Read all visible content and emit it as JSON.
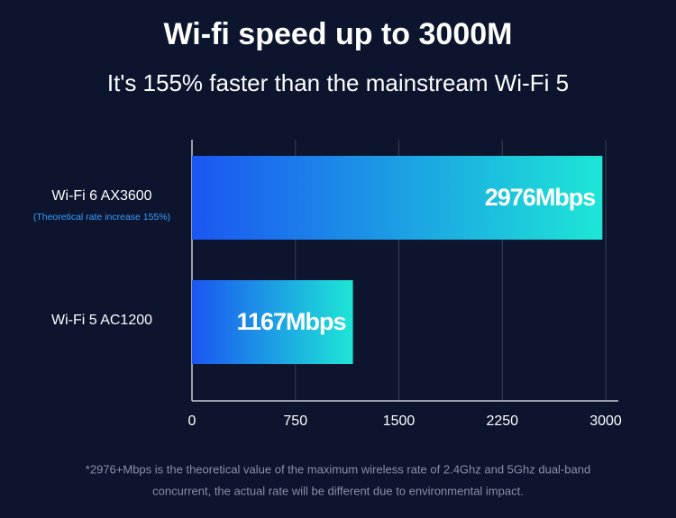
{
  "chart_data": {
    "type": "hbar",
    "title": "Wi-fi speed up to 3000M",
    "subtitle": "It's 155% faster than the mainstream Wi-Fi 5",
    "categories": [
      "Wi-Fi 6 AX3600",
      "Wi-Fi 5 AC1200"
    ],
    "annotations": [
      "(Theoretical rate increase 155%)"
    ],
    "values": [
      2976,
      1167
    ],
    "value_labels": [
      "2976Mbps",
      "1167Mbps"
    ],
    "colors": [
      "#1b56f2",
      "#1de6d6"
    ],
    "xlim": [
      0,
      3000
    ],
    "xticks": [
      0,
      750,
      1500,
      2250,
      3000
    ],
    "grid": true,
    "footnote": [
      "*2976+Mbps is the theoretical value of the maximum wireless rate of 2.4Ghz and 5Ghz dual-band",
      "concurrent, the actual rate will be different due to environmental impact."
    ]
  }
}
